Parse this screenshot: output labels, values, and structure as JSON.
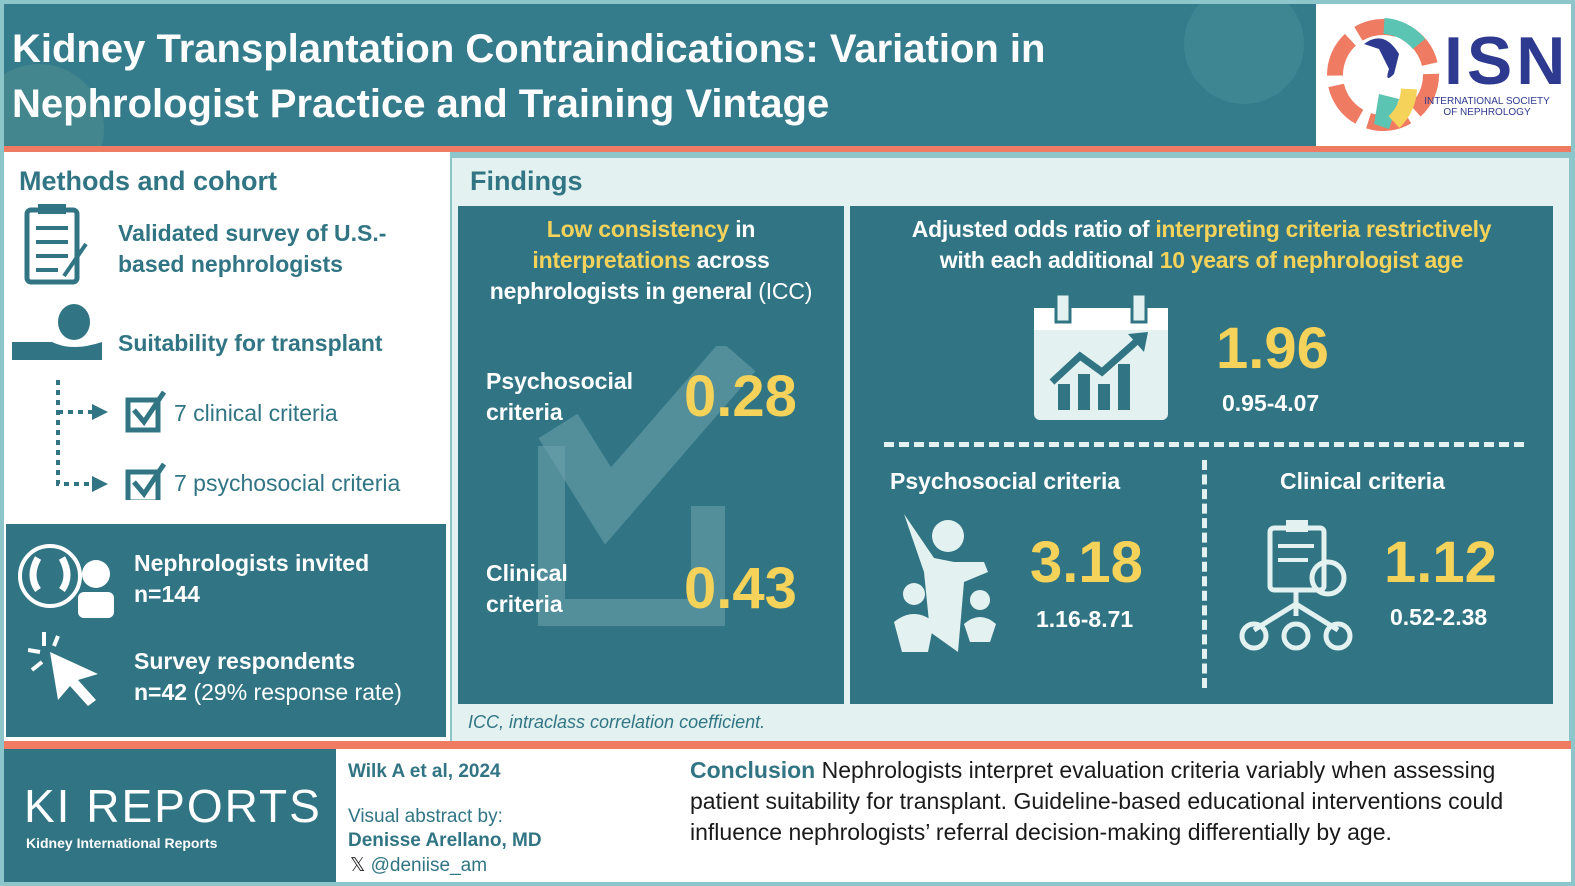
{
  "header": {
    "title": "Kidney Transplantation Contraindications: Variation in Nephrologist Practice and Training Vintage"
  },
  "logo": {
    "abbr": "ISN",
    "name_line1": "INTERNATIONAL SOCIETY",
    "name_line2": "OF NEPHROLOGY"
  },
  "methods": {
    "heading": "Methods and cohort",
    "survey": "Validated survey of U.S.-based nephrologists",
    "suitability": "Suitability for transplant",
    "clinical": "7 clinical criteria",
    "psychosocial": "7 psychosocial criteria",
    "invited_label": "Nephrologists invited",
    "invited_n": "n=144",
    "respondents_label": "Survey respondents",
    "respondents_n": "n=42",
    "respondents_rate": "(29% response rate)"
  },
  "findings": {
    "heading": "Findings",
    "icc": {
      "title_y1": "Low consistency",
      "title_w1": " in",
      "title_y2": "interpretations",
      "title_w2": " across",
      "title_w3": "nephrologists in general",
      "title_w4": " (ICC)",
      "psych_label1": "Psychosocial",
      "psych_label2": "criteria",
      "psych_value": "0.28",
      "clin_label1": "Clinical",
      "clin_label2": "criteria",
      "clin_value": "0.43"
    },
    "or": {
      "title_w1": "Adjusted odds ratio of ",
      "title_y1": "interpreting criteria restrictively",
      "title_w2": "with each additional ",
      "title_y2": "10 years of nephrologist age",
      "overall_value": "1.96",
      "overall_ci": "0.95-4.07",
      "psych_label": "Psychosocial criteria",
      "psych_value": "3.18",
      "psych_ci": "1.16-8.71",
      "clin_label": "Clinical criteria",
      "clin_value": "1.12",
      "clin_ci": "0.52-2.38"
    },
    "footnote": "ICC, intraclass correlation coefficient."
  },
  "footer": {
    "journal": "KI REPORTS",
    "journal_sub": "Kidney International Reports",
    "citation": "Wilk A et al, 2024",
    "va_by": "Visual abstract by:",
    "author": "Denisse Arellano, MD",
    "handle": "@deniise_am",
    "x_icon": "𝕏",
    "conclusion_label": "Conclusion",
    "conclusion": " Nephrologists interpret evaluation criteria variably when assessing patient suitability for transplant. Guideline-based educational interventions could influence nephrologists’ referral decision-making differentially by age."
  },
  "colors": {
    "teal": "#317584",
    "yellow": "#f5d25a",
    "coral": "#f07b63",
    "light": "#e3f2f1"
  }
}
